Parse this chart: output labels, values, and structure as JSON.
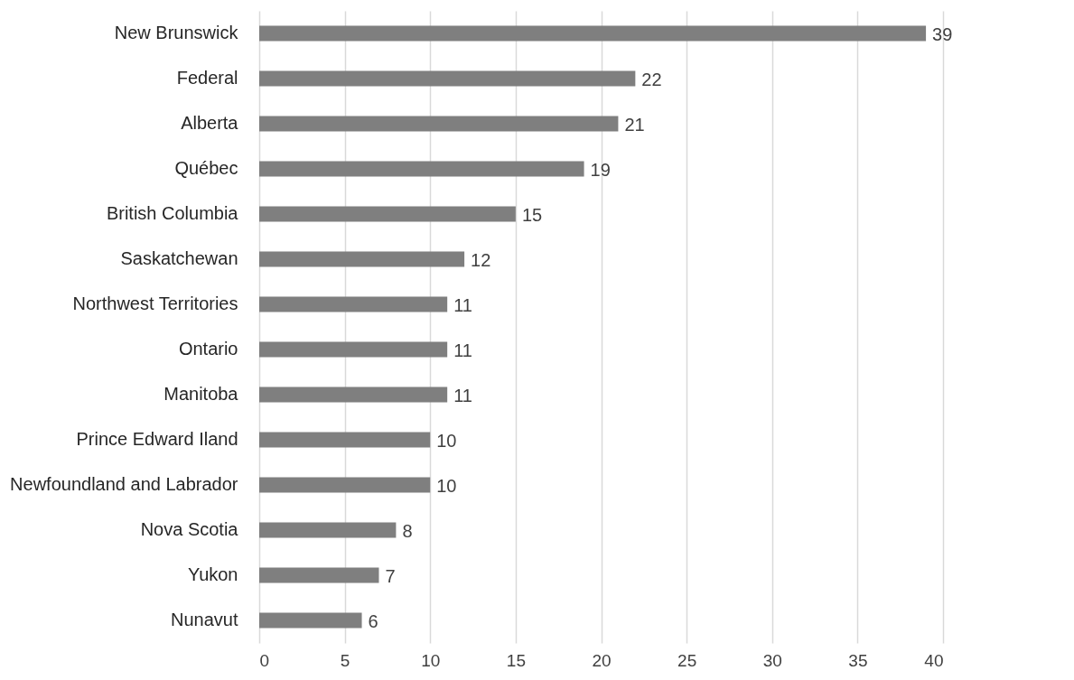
{
  "chart_data": {
    "type": "bar",
    "orientation": "horizontal",
    "categories": [
      "New Brunswick",
      "Federal",
      "Alberta",
      "Québec",
      "British Columbia",
      "Saskatchewan",
      "Northwest Territories",
      "Ontario",
      "Manitoba",
      "Prince Edward Iland",
      "Newfoundland and Labrador",
      "Nova Scotia",
      "Yukon",
      "Nunavut"
    ],
    "values": [
      39,
      22,
      21,
      19,
      15,
      12,
      11,
      11,
      11,
      10,
      10,
      8,
      7,
      6
    ],
    "color": "#7f7f7f",
    "xlim": [
      0,
      40
    ],
    "xticks": [
      0,
      5,
      10,
      15,
      20,
      25,
      30,
      35,
      40
    ],
    "grid": "x",
    "data_labels": true
  }
}
